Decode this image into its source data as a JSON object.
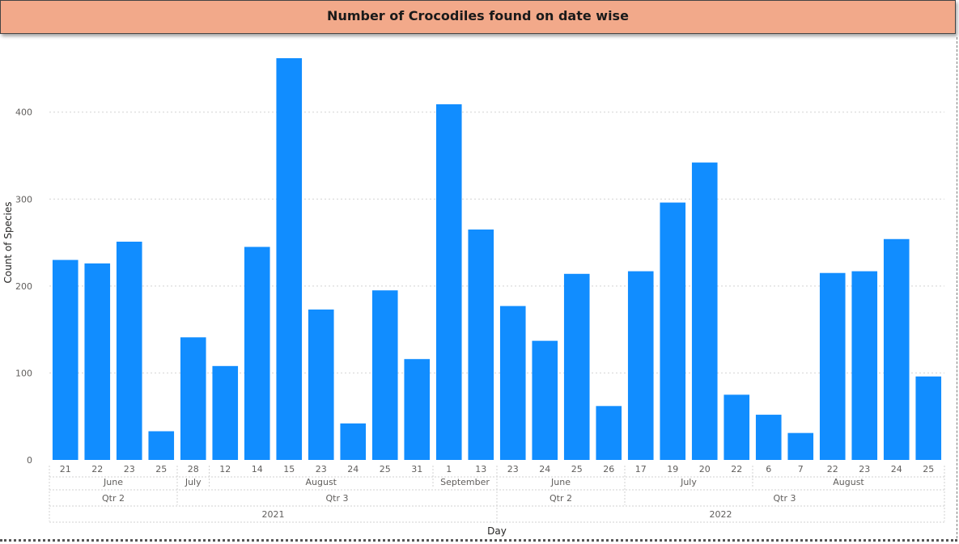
{
  "title": "Number of Crocodiles found on date wise",
  "chart_data": {
    "type": "bar",
    "xlabel": "Day",
    "ylabel": "Count of Species",
    "ylim": [
      0,
      465
    ],
    "yticks": [
      0,
      100,
      200,
      300,
      400
    ],
    "grid": true,
    "color": "#118dff",
    "categories": [
      "21",
      "22",
      "23",
      "25",
      "28",
      "12",
      "14",
      "15",
      "23",
      "24",
      "25",
      "31",
      "1",
      "13",
      "23",
      "24",
      "25",
      "26",
      "17",
      "19",
      "20",
      "22",
      "6",
      "7",
      "22",
      "23",
      "24",
      "25"
    ],
    "values": [
      230,
      226,
      251,
      33,
      141,
      108,
      245,
      462,
      173,
      42,
      195,
      116,
      409,
      265,
      177,
      137,
      214,
      62,
      217,
      296,
      342,
      75,
      52,
      31,
      215,
      217,
      254,
      96
    ],
    "months": [
      {
        "label": "June",
        "count": 4
      },
      {
        "label": "July",
        "count": 1
      },
      {
        "label": "August",
        "count": 7
      },
      {
        "label": "September",
        "count": 2
      },
      {
        "label": "June",
        "count": 4
      },
      {
        "label": "July",
        "count": 4
      },
      {
        "label": "August",
        "count": 6
      }
    ],
    "quarters": [
      {
        "label": "Qtr 2",
        "count": 4
      },
      {
        "label": "Qtr 3",
        "count": 10
      },
      {
        "label": "Qtr 2",
        "count": 4
      },
      {
        "label": "Qtr 3",
        "count": 10
      }
    ],
    "years": [
      {
        "label": "2021",
        "count": 14
      },
      {
        "label": "2022",
        "count": 14
      }
    ]
  }
}
